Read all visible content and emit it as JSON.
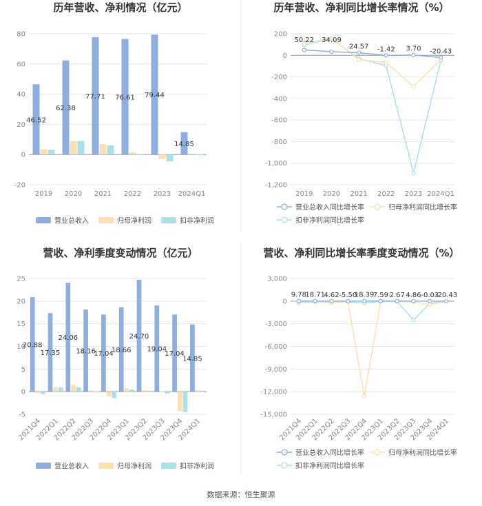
{
  "source": "数据来源：恒生聚源",
  "colors": {
    "revenue": "#8eaee0",
    "parent": "#fde0b2",
    "nonrec": "#a8e2e6",
    "grid": "#e6e6e6"
  },
  "chart_data": [
    {
      "type": "bar",
      "title": "历年营收、净利情况（亿元）",
      "categories": [
        "2019",
        "2020",
        "2021",
        "2022",
        "2023",
        "2024Q1"
      ],
      "series": [
        {
          "name": "营业总收入",
          "values": [
            46.52,
            62.38,
            77.71,
            76.61,
            79.44,
            14.85
          ]
        },
        {
          "name": "归母净利润",
          "values": [
            3.5,
            9.0,
            6.9,
            1.5,
            -3.0,
            0.5
          ]
        },
        {
          "name": "扣非净利润",
          "values": [
            3.2,
            9.0,
            6.0,
            0.3,
            -4.5,
            0.2
          ]
        }
      ],
      "labels": [
        "46.52",
        "62.38",
        "77.71",
        "76.61",
        "79.44",
        "14.85"
      ],
      "ylim": [
        -20,
        80
      ],
      "yticks": [
        "-20",
        "0",
        "20",
        "40",
        "60",
        "80"
      ],
      "legend": "bottom"
    },
    {
      "type": "line",
      "title": "历年营收、净利同比增长率情况（%）",
      "categories": [
        "2019",
        "2020",
        "2021",
        "2022",
        "2023",
        "2024Q1"
      ],
      "series": [
        {
          "name": "营业总收入同比增长率",
          "values": [
            50.22,
            34.09,
            24.57,
            -1.42,
            3.7,
            -20.43
          ]
        },
        {
          "name": "归母净利润同比增长率",
          "values": [
            110,
            160,
            -40,
            -65,
            -290,
            -40
          ]
        },
        {
          "name": "扣非净利润同比增长率",
          "values": [
            95,
            155,
            -30,
            -95,
            -1090,
            -50
          ]
        }
      ],
      "labels": [
        "50.22",
        "34.09",
        "24.57",
        "-1.42",
        "3.70",
        "-20.43"
      ],
      "ylim": [
        -1200,
        200
      ],
      "yticks": [
        "-1,200",
        "-1,000",
        "-800",
        "-600",
        "-400",
        "-200",
        "0",
        "200"
      ],
      "legend": "bottom"
    },
    {
      "type": "bar",
      "title": "营收、净利季度变动情况（亿元）",
      "categories": [
        "2021Q4",
        "2022Q1",
        "2022Q2",
        "2022Q3",
        "2022Q4",
        "2023Q1",
        "2023Q2",
        "2023Q3",
        "2023Q4",
        "2024Q1"
      ],
      "series": [
        {
          "name": "营业总收入",
          "values": [
            20.88,
            17.35,
            24.06,
            18.16,
            17.04,
            18.66,
            24.7,
            19.04,
            17.04,
            14.85
          ]
        },
        {
          "name": "归母净利润",
          "values": [
            -0.3,
            1.0,
            1.5,
            0.3,
            -1.0,
            0.7,
            0.3,
            0.1,
            -4.3,
            0.4
          ]
        },
        {
          "name": "扣非净利润",
          "values": [
            -0.5,
            0.9,
            1.0,
            0.1,
            -1.4,
            0.5,
            0.2,
            -0.4,
            -4.5,
            0.2
          ]
        }
      ],
      "labels": [
        "20.88",
        "17.35",
        "24.06",
        "18.16",
        "17.04",
        "18.66",
        "24.70",
        "19.04",
        "17.04",
        "14.85"
      ],
      "ylim": [
        -5,
        25
      ],
      "yticks": [
        "-5",
        "0",
        "5",
        "10",
        "15",
        "20",
        "25"
      ],
      "legend": "bottom"
    },
    {
      "type": "line",
      "title": "营收、净利同比增长率季度变动情况（%）",
      "categories": [
        "2021Q4",
        "2022Q1",
        "2022Q2",
        "2022Q3",
        "2022Q4",
        "2023Q1",
        "2023Q2",
        "2023Q3",
        "2023Q4",
        "2024Q1"
      ],
      "series": [
        {
          "name": "营业总收入同比增长率",
          "values": [
            9.78,
            18.71,
            4.62,
            -5.5,
            18.39,
            7.59,
            2.67,
            4.86,
            -0.03,
            -20.43
          ]
        },
        {
          "name": "归母净利润同比增长率",
          "values": [
            -100,
            -50,
            -150,
            -100,
            -12600,
            0,
            -50,
            -100,
            -450,
            -40
          ]
        },
        {
          "name": "扣非净利润同比增长率",
          "values": [
            -200,
            -100,
            -200,
            -100,
            -250,
            0,
            -50,
            -2500,
            -300,
            -50
          ]
        }
      ],
      "labels": [
        "9.78",
        "18.71",
        "4.62",
        "-5.50",
        "18.39",
        "7.59",
        "2.67",
        "4.86",
        "-0.03",
        "-20.43"
      ],
      "ylim": [
        -15000,
        3000
      ],
      "yticks": [
        "-15,000",
        "-12,000",
        "-9,000",
        "-6,000",
        "-3,000",
        "0",
        "3,000"
      ],
      "legend": "bottom"
    }
  ]
}
